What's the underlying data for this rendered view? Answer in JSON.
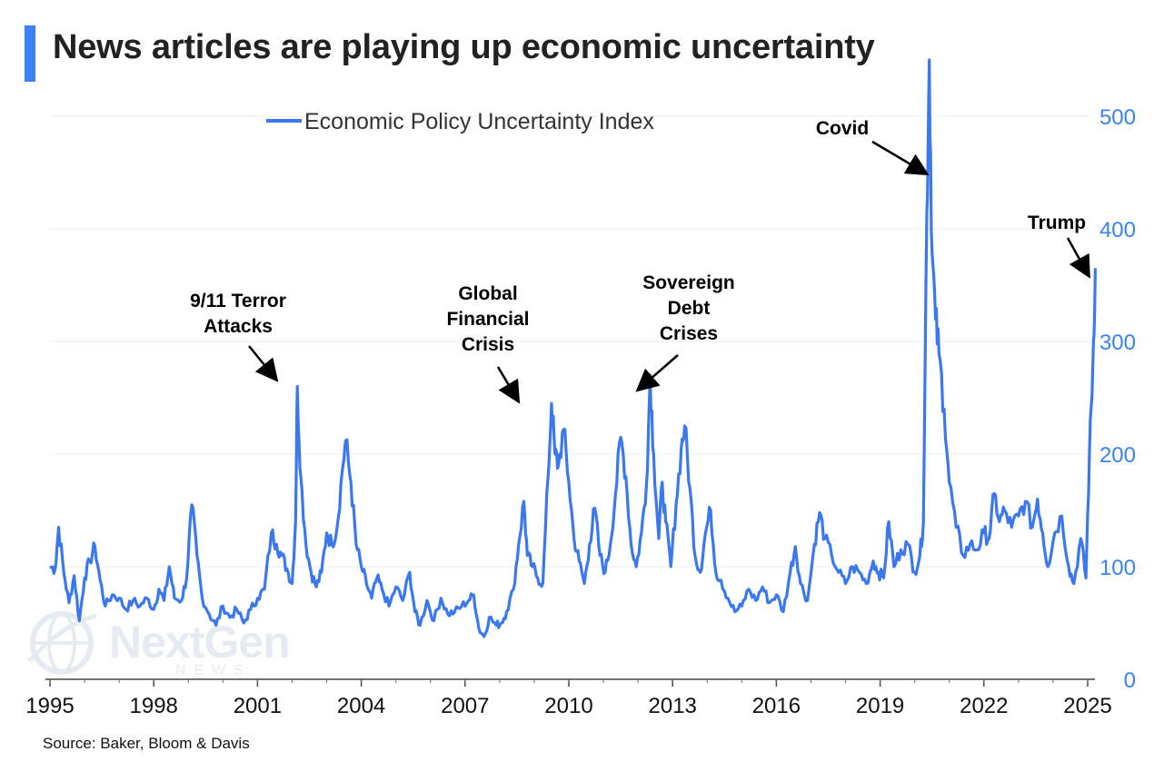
{
  "title": "News articles are playing up economic uncertainty",
  "source": "Source: Baker, Bloom & Davis",
  "watermark": {
    "name": "NextGen",
    "sub": "NEWS"
  },
  "colors": {
    "accent": "#3b82f6",
    "line": "#3b78ee",
    "axis_text": "#3b82f6"
  },
  "chart_data": {
    "type": "line",
    "title": "News articles are playing up economic uncertainty",
    "xlabel": "",
    "ylabel": "",
    "xlim": [
      1995,
      2025.2
    ],
    "ylim": [
      0,
      550
    ],
    "x_ticks": [
      "1995",
      "1998",
      "2001",
      "2004",
      "2007",
      "2010",
      "2013",
      "2016",
      "2019",
      "2022",
      "2025"
    ],
    "y_ticks": [
      "0",
      "100",
      "200",
      "300",
      "400",
      "500"
    ],
    "legend": "top-left",
    "series": [
      {
        "name": "Economic Policy Uncertainty Index",
        "points": [
          [
            1995.0,
            100
          ],
          [
            1995.15,
            98
          ],
          [
            1995.25,
            135
          ],
          [
            1995.4,
            95
          ],
          [
            1995.55,
            68
          ],
          [
            1995.7,
            92
          ],
          [
            1995.85,
            52
          ],
          [
            1996.0,
            90
          ],
          [
            1996.15,
            105
          ],
          [
            1996.3,
            118
          ],
          [
            1996.45,
            88
          ],
          [
            1996.6,
            65
          ],
          [
            1996.8,
            75
          ],
          [
            1997.0,
            72
          ],
          [
            1997.2,
            62
          ],
          [
            1997.4,
            70
          ],
          [
            1997.6,
            65
          ],
          [
            1997.8,
            72
          ],
          [
            1998.0,
            62
          ],
          [
            1998.15,
            80
          ],
          [
            1998.3,
            70
          ],
          [
            1998.45,
            100
          ],
          [
            1998.6,
            72
          ],
          [
            1998.8,
            70
          ],
          [
            1998.95,
            90
          ],
          [
            1999.1,
            155
          ],
          [
            1999.25,
            110
          ],
          [
            1999.4,
            72
          ],
          [
            1999.6,
            58
          ],
          [
            1999.8,
            48
          ],
          [
            2000.0,
            65
          ],
          [
            2000.2,
            55
          ],
          [
            2000.4,
            62
          ],
          [
            2000.6,
            50
          ],
          [
            2000.8,
            62
          ],
          [
            2001.0,
            72
          ],
          [
            2001.2,
            80
          ],
          [
            2001.4,
            130
          ],
          [
            2001.55,
            120
          ],
          [
            2001.7,
            110
          ],
          [
            2001.85,
            98
          ],
          [
            2002.0,
            85
          ],
          [
            2002.1,
            140
          ],
          [
            2002.15,
            260
          ],
          [
            2002.25,
            180
          ],
          [
            2002.4,
            120
          ],
          [
            2002.55,
            95
          ],
          [
            2002.7,
            82
          ],
          [
            2002.85,
            95
          ],
          [
            2003.0,
            130
          ],
          [
            2003.15,
            120
          ],
          [
            2003.3,
            135
          ],
          [
            2003.45,
            185
          ],
          [
            2003.55,
            212
          ],
          [
            2003.7,
            175
          ],
          [
            2003.85,
            120
          ],
          [
            2004.0,
            100
          ],
          [
            2004.15,
            85
          ],
          [
            2004.3,
            72
          ],
          [
            2004.45,
            90
          ],
          [
            2004.6,
            80
          ],
          [
            2004.8,
            65
          ],
          [
            2005.0,
            82
          ],
          [
            2005.2,
            70
          ],
          [
            2005.4,
            95
          ],
          [
            2005.55,
            60
          ],
          [
            2005.7,
            48
          ],
          [
            2005.9,
            70
          ],
          [
            2006.1,
            52
          ],
          [
            2006.3,
            72
          ],
          [
            2006.5,
            58
          ],
          [
            2006.7,
            60
          ],
          [
            2006.9,
            65
          ],
          [
            2007.1,
            70
          ],
          [
            2007.25,
            75
          ],
          [
            2007.4,
            45
          ],
          [
            2007.55,
            38
          ],
          [
            2007.7,
            55
          ],
          [
            2007.9,
            48
          ],
          [
            2008.05,
            50
          ],
          [
            2008.2,
            60
          ],
          [
            2008.4,
            80
          ],
          [
            2008.55,
            120
          ],
          [
            2008.7,
            158
          ],
          [
            2008.8,
            110
          ],
          [
            2008.95,
            100
          ],
          [
            2009.1,
            90
          ],
          [
            2009.25,
            85
          ],
          [
            2009.4,
            180
          ],
          [
            2009.5,
            245
          ],
          [
            2009.6,
            200
          ],
          [
            2009.7,
            190
          ],
          [
            2009.85,
            222
          ],
          [
            2010.0,
            175
          ],
          [
            2010.15,
            125
          ],
          [
            2010.3,
            105
          ],
          [
            2010.45,
            85
          ],
          [
            2010.6,
            120
          ],
          [
            2010.75,
            152
          ],
          [
            2010.9,
            110
          ],
          [
            2011.05,
            95
          ],
          [
            2011.2,
            120
          ],
          [
            2011.35,
            165
          ],
          [
            2011.5,
            215
          ],
          [
            2011.65,
            180
          ],
          [
            2011.8,
            120
          ],
          [
            2011.95,
            100
          ],
          [
            2012.1,
            130
          ],
          [
            2012.25,
            175
          ],
          [
            2012.35,
            270
          ],
          [
            2012.45,
            200
          ],
          [
            2012.6,
            125
          ],
          [
            2012.7,
            175
          ],
          [
            2012.8,
            140
          ],
          [
            2012.95,
            100
          ],
          [
            2013.1,
            155
          ],
          [
            2013.25,
            205
          ],
          [
            2013.35,
            225
          ],
          [
            2013.5,
            170
          ],
          [
            2013.65,
            110
          ],
          [
            2013.8,
            95
          ],
          [
            2013.95,
            130
          ],
          [
            2014.1,
            150
          ],
          [
            2014.25,
            95
          ],
          [
            2014.4,
            88
          ],
          [
            2014.6,
            72
          ],
          [
            2014.8,
            60
          ],
          [
            2015.0,
            65
          ],
          [
            2015.2,
            80
          ],
          [
            2015.4,
            70
          ],
          [
            2015.6,
            82
          ],
          [
            2015.8,
            68
          ],
          [
            2016.0,
            75
          ],
          [
            2016.2,
            60
          ],
          [
            2016.4,
            95
          ],
          [
            2016.55,
            118
          ],
          [
            2016.7,
            85
          ],
          [
            2016.9,
            70
          ],
          [
            2017.1,
            120
          ],
          [
            2017.25,
            148
          ],
          [
            2017.4,
            125
          ],
          [
            2017.6,
            110
          ],
          [
            2017.8,
            95
          ],
          [
            2018.0,
            85
          ],
          [
            2018.2,
            100
          ],
          [
            2018.4,
            95
          ],
          [
            2018.6,
            85
          ],
          [
            2018.8,
            105
          ],
          [
            2018.95,
            95
          ],
          [
            2019.1,
            90
          ],
          [
            2019.25,
            140
          ],
          [
            2019.4,
            100
          ],
          [
            2019.6,
            115
          ],
          [
            2019.8,
            120
          ],
          [
            2020.0,
            95
          ],
          [
            2020.15,
            110
          ],
          [
            2020.25,
            140
          ],
          [
            2020.35,
            415
          ],
          [
            2020.42,
            550
          ],
          [
            2020.5,
            380
          ],
          [
            2020.6,
            320
          ],
          [
            2020.7,
            290
          ],
          [
            2020.85,
            240
          ],
          [
            2021.0,
            175
          ],
          [
            2021.2,
            135
          ],
          [
            2021.4,
            110
          ],
          [
            2021.6,
            120
          ],
          [
            2021.8,
            115
          ],
          [
            2022.0,
            130
          ],
          [
            2022.15,
            125
          ],
          [
            2022.3,
            165
          ],
          [
            2022.45,
            140
          ],
          [
            2022.6,
            150
          ],
          [
            2022.8,
            135
          ],
          [
            2023.0,
            145
          ],
          [
            2023.2,
            158
          ],
          [
            2023.4,
            135
          ],
          [
            2023.55,
            160
          ],
          [
            2023.7,
            130
          ],
          [
            2023.85,
            100
          ],
          [
            2024.05,
            130
          ],
          [
            2024.25,
            145
          ],
          [
            2024.45,
            100
          ],
          [
            2024.6,
            85
          ],
          [
            2024.8,
            125
          ],
          [
            2024.95,
            90
          ],
          [
            2025.05,
            200
          ],
          [
            2025.15,
            280
          ],
          [
            2025.22,
            365
          ]
        ]
      }
    ],
    "annotations": [
      {
        "text": "9/11 Terror Attacks",
        "lines": [
          "9/11 Terror",
          "Attacks"
        ]
      },
      {
        "text": "Global Financial Crisis",
        "lines": [
          "Global",
          "Financial",
          "Crisis"
        ]
      },
      {
        "text": "Sovereign Debt Crises",
        "lines": [
          "Sovereign",
          "Debt",
          "Crises"
        ]
      },
      {
        "text": "Covid",
        "lines": [
          "Covid"
        ]
      },
      {
        "text": "Trump",
        "lines": [
          "Trump"
        ]
      }
    ]
  }
}
